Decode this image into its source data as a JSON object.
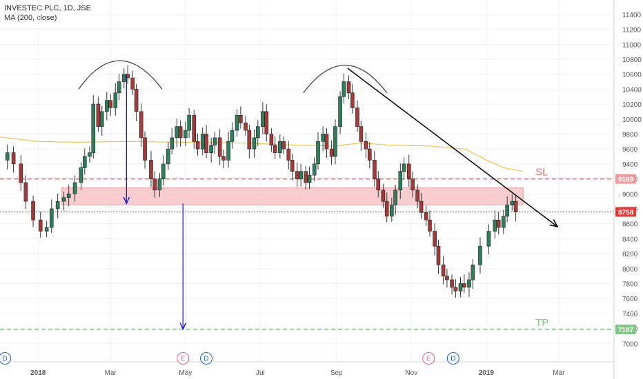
{
  "header": {
    "title": "INVESTEC PLC, 1D, JSE",
    "indicator": "MA (200, close)"
  },
  "chart_data": {
    "type": "candlestick",
    "title": "INVESTEC PLC, 1D, JSE",
    "ylim": [
      6800,
      11500
    ],
    "y_ticks": [
      7000,
      7200,
      7400,
      7600,
      7800,
      8000,
      8200,
      8400,
      8600,
      8800,
      9000,
      9200,
      9400,
      9600,
      9800,
      10000,
      10200,
      10400,
      10600,
      10800,
      11000,
      11200,
      11400
    ],
    "x_ticks": [
      "2018",
      "Mar",
      "May",
      "Jul",
      "Sep",
      "Nov",
      "2019",
      "Mar"
    ],
    "x_tick_dates": [
      "2018-01-01",
      "2018-03-01",
      "2018-05-01",
      "2018-07-01",
      "2018-09-01",
      "2018-11-01",
      "2019-01-01",
      "2019-03-01"
    ],
    "x_range": [
      "2017-12-01",
      "2019-04-15"
    ],
    "price_closes": [
      [
        "2017-12-01",
        9450
      ],
      [
        "2017-12-07",
        9550
      ],
      [
        "2017-12-12",
        9400
      ],
      [
        "2017-12-18",
        9150
      ],
      [
        "2017-12-22",
        8900
      ],
      [
        "2017-12-28",
        8650
      ],
      [
        "2018-01-03",
        8500
      ],
      [
        "2018-01-08",
        8550
      ],
      [
        "2018-01-12",
        8800
      ],
      [
        "2018-01-17",
        8900
      ],
      [
        "2018-01-22",
        8950
      ],
      [
        "2018-01-26",
        9000
      ],
      [
        "2018-01-31",
        9150
      ],
      [
        "2018-02-05",
        9350
      ],
      [
        "2018-02-08",
        9500
      ],
      [
        "2018-02-12",
        9550
      ],
      [
        "2018-02-15",
        10200
      ],
      [
        "2018-02-19",
        9900
      ],
      [
        "2018-02-22",
        10100
      ],
      [
        "2018-02-26",
        10250
      ],
      [
        "2018-03-01",
        10150
      ],
      [
        "2018-03-05",
        10350
      ],
      [
        "2018-03-08",
        10500
      ],
      [
        "2018-03-12",
        10600
      ],
      [
        "2018-03-15",
        10550
      ],
      [
        "2018-03-19",
        10400
      ],
      [
        "2018-03-22",
        10100
      ],
      [
        "2018-03-26",
        9750
      ],
      [
        "2018-03-29",
        9450
      ],
      [
        "2018-04-03",
        9200
      ],
      [
        "2018-04-06",
        9050
      ],
      [
        "2018-04-10",
        9200
      ],
      [
        "2018-04-13",
        9400
      ],
      [
        "2018-04-17",
        9600
      ],
      [
        "2018-04-20",
        9750
      ],
      [
        "2018-04-24",
        9900
      ],
      [
        "2018-04-27",
        9750
      ],
      [
        "2018-05-01",
        9850
      ],
      [
        "2018-05-04",
        10050
      ],
      [
        "2018-05-08",
        9700
      ],
      [
        "2018-05-11",
        9600
      ],
      [
        "2018-05-15",
        9800
      ],
      [
        "2018-05-18",
        9550
      ],
      [
        "2018-05-22",
        9650
      ],
      [
        "2018-05-25",
        9750
      ],
      [
        "2018-05-29",
        9500
      ],
      [
        "2018-06-01",
        9450
      ],
      [
        "2018-06-05",
        9700
      ],
      [
        "2018-06-08",
        9850
      ],
      [
        "2018-06-12",
        10050
      ],
      [
        "2018-06-15",
        9950
      ],
      [
        "2018-06-19",
        9850
      ],
      [
        "2018-06-22",
        9600
      ],
      [
        "2018-06-26",
        9750
      ],
      [
        "2018-06-29",
        9900
      ],
      [
        "2018-07-03",
        10100
      ],
      [
        "2018-07-06",
        9800
      ],
      [
        "2018-07-10",
        9650
      ],
      [
        "2018-07-13",
        9550
      ],
      [
        "2018-07-17",
        9700
      ],
      [
        "2018-07-20",
        9600
      ],
      [
        "2018-07-24",
        9450
      ],
      [
        "2018-07-27",
        9300
      ],
      [
        "2018-07-31",
        9200
      ],
      [
        "2018-08-03",
        9300
      ],
      [
        "2018-08-07",
        9150
      ],
      [
        "2018-08-10",
        9250
      ],
      [
        "2018-08-14",
        9400
      ],
      [
        "2018-08-17",
        9700
      ],
      [
        "2018-08-21",
        9800
      ],
      [
        "2018-08-24",
        9600
      ],
      [
        "2018-08-28",
        9500
      ],
      [
        "2018-08-31",
        9900
      ],
      [
        "2018-09-04",
        10300
      ],
      [
        "2018-09-07",
        10500
      ],
      [
        "2018-09-11",
        10350
      ],
      [
        "2018-09-14",
        10150
      ],
      [
        "2018-09-18",
        9900
      ],
      [
        "2018-09-21",
        9700
      ],
      [
        "2018-09-25",
        9600
      ],
      [
        "2018-09-28",
        9450
      ],
      [
        "2018-10-02",
        9200
      ],
      [
        "2018-10-05",
        9050
      ],
      [
        "2018-10-09",
        8900
      ],
      [
        "2018-10-12",
        8700
      ],
      [
        "2018-10-16",
        8850
      ],
      [
        "2018-10-19",
        9050
      ],
      [
        "2018-10-23",
        9300
      ],
      [
        "2018-10-26",
        9400
      ],
      [
        "2018-10-30",
        9200
      ],
      [
        "2018-11-02",
        9050
      ],
      [
        "2018-11-06",
        8900
      ],
      [
        "2018-11-09",
        8750
      ],
      [
        "2018-11-13",
        8650
      ],
      [
        "2018-11-16",
        8500
      ],
      [
        "2018-11-20",
        8300
      ],
      [
        "2018-11-23",
        8050
      ],
      [
        "2018-11-27",
        7900
      ],
      [
        "2018-11-30",
        7850
      ],
      [
        "2018-12-04",
        7750
      ],
      [
        "2018-12-07",
        7700
      ],
      [
        "2018-12-11",
        7800
      ],
      [
        "2018-12-14",
        7750
      ],
      [
        "2018-12-18",
        7850
      ],
      [
        "2018-12-21",
        8050
      ],
      [
        "2018-12-27",
        8300
      ],
      [
        "2019-01-03",
        8500
      ],
      [
        "2019-01-08",
        8650
      ],
      [
        "2019-01-11",
        8550
      ],
      [
        "2019-01-15",
        8700
      ],
      [
        "2019-01-18",
        8850
      ],
      [
        "2019-01-22",
        8900
      ],
      [
        "2019-01-25",
        8758
      ]
    ],
    "moving_average": [
      [
        "2017-12-01",
        9760
      ],
      [
        "2018-01-01",
        9700
      ],
      [
        "2018-02-01",
        9690
      ],
      [
        "2018-03-15",
        9700
      ],
      [
        "2018-05-01",
        9690
      ],
      [
        "2018-06-15",
        9680
      ],
      [
        "2018-08-01",
        9650
      ],
      [
        "2018-09-01",
        9640
      ],
      [
        "2018-09-20",
        9680
      ],
      [
        "2018-10-15",
        9650
      ],
      [
        "2018-11-15",
        9640
      ],
      [
        "2018-12-15",
        9600
      ],
      [
        "2019-01-01",
        9450
      ],
      [
        "2019-01-15",
        9350
      ],
      [
        "2019-01-31",
        9300
      ]
    ],
    "levels": [
      {
        "name": "SL",
        "value": 9199,
        "color": "#e57373",
        "start": "2017-12-01",
        "end": "2019-04-15"
      },
      {
        "name": "TP",
        "value": 7187,
        "color": "#81c784",
        "start": "2017-12-01",
        "end": "2019-04-15"
      },
      {
        "name": "",
        "value": 8758,
        "color": "#e53935",
        "start": "2017-12-01",
        "end": "2019-04-15"
      }
    ],
    "price_labels": [
      {
        "value": 9199,
        "text": "9199",
        "color": "#ef9a9a"
      },
      {
        "value": 8758,
        "text": "8758",
        "color": "#e53935"
      },
      {
        "value": 7187,
        "text": "7187",
        "color": "#81c784"
      }
    ],
    "zone": {
      "from": 8850,
      "to": 9080,
      "start": "2018-01-20",
      "end": "2019-01-31",
      "color": "#f8cdd0"
    },
    "arcs": [
      {
        "start": "2018-02-03",
        "peak": "2018-03-08",
        "end": "2018-04-12",
        "base": 10400,
        "top": 10780
      },
      {
        "start": "2018-08-05",
        "peak": "2018-09-08",
        "end": "2018-10-12",
        "base": 10350,
        "top": 10720
      }
    ],
    "arrows": [
      {
        "from": [
          "2018-03-14",
          10600
        ],
        "to": [
          "2018-03-14",
          8870
        ],
        "color": "#1a1adf"
      },
      {
        "from": [
          "2018-04-29",
          8870
        ],
        "to": [
          "2018-04-29",
          7190
        ],
        "color": "#1a1adf"
      },
      {
        "from": [
          "2018-09-10",
          10680
        ],
        "to": [
          "2019-02-28",
          8560
        ],
        "color": "#000000"
      }
    ],
    "events": [
      {
        "letter": "D",
        "date": "2017-12-05",
        "color": "#2b6cd4"
      },
      {
        "letter": "E",
        "date": "2018-04-29",
        "color": "#e06a8a"
      },
      {
        "letter": "D",
        "date": "2018-05-18",
        "color": "#2b6cd4"
      },
      {
        "letter": "E",
        "date": "2018-11-15",
        "color": "#e06a8a"
      },
      {
        "letter": "D",
        "date": "2018-12-05",
        "color": "#2b6cd4"
      }
    ]
  }
}
